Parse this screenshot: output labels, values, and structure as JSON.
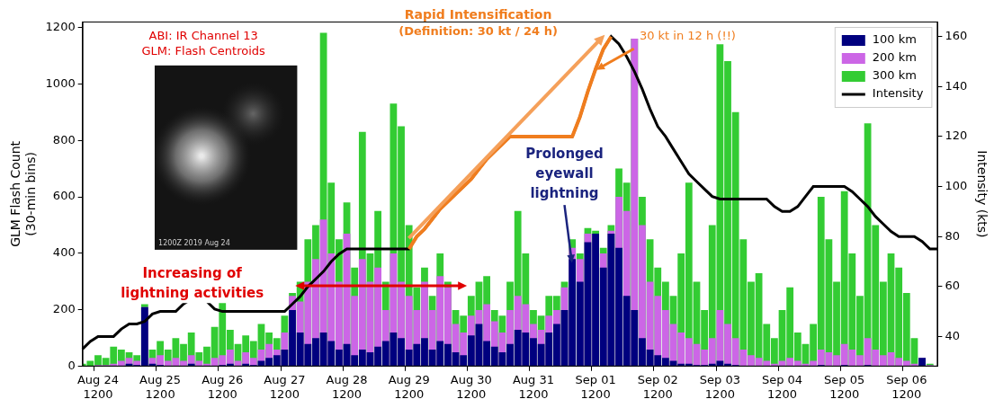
{
  "chart_data": {
    "type": "bar",
    "categories": [
      null,
      null,
      "Aug 24 1200",
      null,
      null,
      null,
      null,
      null,
      null,
      null,
      "Aug 25 1200",
      null,
      null,
      null,
      null,
      null,
      null,
      null,
      "Aug 26 1200",
      null,
      null,
      null,
      null,
      null,
      null,
      null,
      "Aug 27 1200",
      null,
      null,
      null,
      null,
      null,
      null,
      null,
      "Aug 28 1200",
      null,
      null,
      null,
      null,
      null,
      null,
      null,
      "Aug 29 1200",
      null,
      null,
      null,
      null,
      null,
      null,
      null,
      "Aug 30 1200",
      null,
      null,
      null,
      null,
      null,
      null,
      null,
      "Aug 31 1200",
      null,
      null,
      null,
      null,
      null,
      null,
      null,
      "Sep 01 1200",
      null,
      null,
      null,
      null,
      null,
      null,
      null,
      "Sep 02 1200",
      null,
      null,
      null,
      null,
      null,
      null,
      null,
      "Sep 03 1200",
      null,
      null,
      null,
      null,
      null,
      null,
      null,
      "Sep 04 1200",
      null,
      null,
      null,
      null,
      null,
      null,
      null,
      "Sep 05 1200",
      null,
      null,
      null,
      null,
      null,
      null,
      null,
      "Sep 06 1200",
      null,
      null,
      null,
      null
    ],
    "series": [
      {
        "name": "100 km",
        "color": "#00007f",
        "values": [
          0,
          0,
          0,
          0,
          0,
          0,
          10,
          5,
          210,
          10,
          5,
          0,
          0,
          0,
          10,
          0,
          0,
          0,
          5,
          10,
          0,
          10,
          5,
          20,
          30,
          40,
          60,
          200,
          120,
          80,
          100,
          120,
          90,
          60,
          80,
          40,
          60,
          50,
          70,
          90,
          120,
          100,
          60,
          80,
          100,
          60,
          90,
          80,
          50,
          40,
          110,
          150,
          90,
          70,
          50,
          80,
          130,
          120,
          100,
          80,
          120,
          150,
          200,
          380,
          300,
          440,
          470,
          350,
          470,
          420,
          250,
          200,
          100,
          60,
          40,
          30,
          20,
          10,
          10,
          5,
          5,
          10,
          20,
          10,
          5,
          0,
          0,
          0,
          0,
          0,
          0,
          0,
          0,
          0,
          0,
          5,
          0,
          0,
          5,
          0,
          0,
          5,
          0,
          0,
          0,
          0,
          0,
          0,
          30,
          0,
          0
        ]
      },
      {
        "name": "200 km",
        "color": "#cc66e6",
        "values": [
          0,
          0,
          5,
          5,
          10,
          20,
          30,
          20,
          210,
          30,
          40,
          20,
          30,
          20,
          40,
          20,
          10,
          30,
          40,
          60,
          20,
          50,
          30,
          60,
          80,
          60,
          120,
          250,
          230,
          300,
          380,
          520,
          400,
          300,
          470,
          250,
          380,
          300,
          350,
          200,
          400,
          300,
          250,
          200,
          300,
          200,
          320,
          280,
          150,
          120,
          180,
          200,
          220,
          160,
          120,
          200,
          250,
          220,
          150,
          130,
          180,
          200,
          280,
          420,
          380,
          470,
          470,
          400,
          480,
          600,
          550,
          1160,
          500,
          300,
          250,
          200,
          150,
          120,
          100,
          80,
          60,
          100,
          200,
          150,
          100,
          60,
          40,
          30,
          20,
          10,
          20,
          30,
          20,
          10,
          20,
          60,
          50,
          40,
          80,
          60,
          40,
          100,
          60,
          40,
          50,
          30,
          20,
          10,
          30,
          5,
          0
        ]
      },
      {
        "name": "300 km",
        "color": "#33cc33",
        "values": [
          10,
          20,
          40,
          30,
          70,
          60,
          50,
          40,
          220,
          60,
          90,
          60,
          100,
          80,
          120,
          50,
          70,
          140,
          250,
          130,
          80,
          110,
          90,
          150,
          120,
          100,
          180,
          260,
          300,
          450,
          500,
          1180,
          650,
          450,
          580,
          350,
          830,
          400,
          550,
          300,
          930,
          850,
          500,
          280,
          350,
          250,
          400,
          300,
          200,
          180,
          250,
          300,
          320,
          200,
          180,
          300,
          550,
          400,
          200,
          180,
          250,
          250,
          300,
          450,
          400,
          490,
          480,
          420,
          500,
          700,
          650,
          1160,
          600,
          450,
          350,
          300,
          250,
          400,
          650,
          300,
          200,
          500,
          1140,
          1080,
          900,
          450,
          300,
          330,
          150,
          100,
          200,
          280,
          120,
          80,
          150,
          600,
          450,
          300,
          620,
          400,
          250,
          860,
          500,
          300,
          400,
          350,
          260,
          100,
          30,
          10,
          0
        ]
      },
      {
        "name": "Intensity",
        "color": "#000000",
        "type": "line",
        "axis": "y2",
        "values": [
          35,
          38,
          40,
          40,
          40,
          43,
          45,
          45,
          46,
          49,
          50,
          50,
          50,
          53,
          55,
          55,
          54,
          51,
          50,
          50,
          50,
          50,
          50,
          50,
          50,
          50,
          50,
          53,
          56,
          60,
          63,
          66,
          70,
          73,
          75,
          75,
          75,
          75,
          75,
          75,
          75,
          75,
          75,
          80,
          83,
          87,
          91,
          94,
          97,
          100,
          103,
          107,
          111,
          114,
          117,
          120,
          120,
          120,
          120,
          120,
          120,
          120,
          120,
          120,
          128,
          138,
          147,
          155,
          160,
          157,
          152,
          146,
          139,
          131,
          124,
          120,
          115,
          110,
          105,
          102,
          99,
          96,
          95,
          95,
          95,
          95,
          95,
          95,
          95,
          92,
          90,
          90,
          92,
          96,
          100,
          100,
          100,
          100,
          100,
          98,
          95,
          92,
          88,
          85,
          82,
          80,
          80,
          80,
          78,
          75,
          75
        ]
      }
    ],
    "y_label": "GLM Flash Count (30-min bins)",
    "y2_label": "Intensity (kts)",
    "ylim": [
      0,
      1220
    ],
    "yticks": [
      0,
      200,
      400,
      600,
      800,
      1000,
      1200
    ],
    "y2lim": [
      28,
      166
    ],
    "y2ticks": [
      40,
      60,
      80,
      100,
      120,
      140,
      160
    ],
    "grid": false,
    "legend": "upper right",
    "stacked": false,
    "annotations": [
      "ABI: IR Channel 13",
      "GLM: Flash Centroids",
      "1200Z 2019 Aug 24",
      "Rapid Intensification",
      "(Definition: 30 kt / 24 h)",
      "30 kt in 12 h (!!)",
      "Increasing of lightning activities",
      "Prolonged eyewall lightning"
    ]
  }
}
